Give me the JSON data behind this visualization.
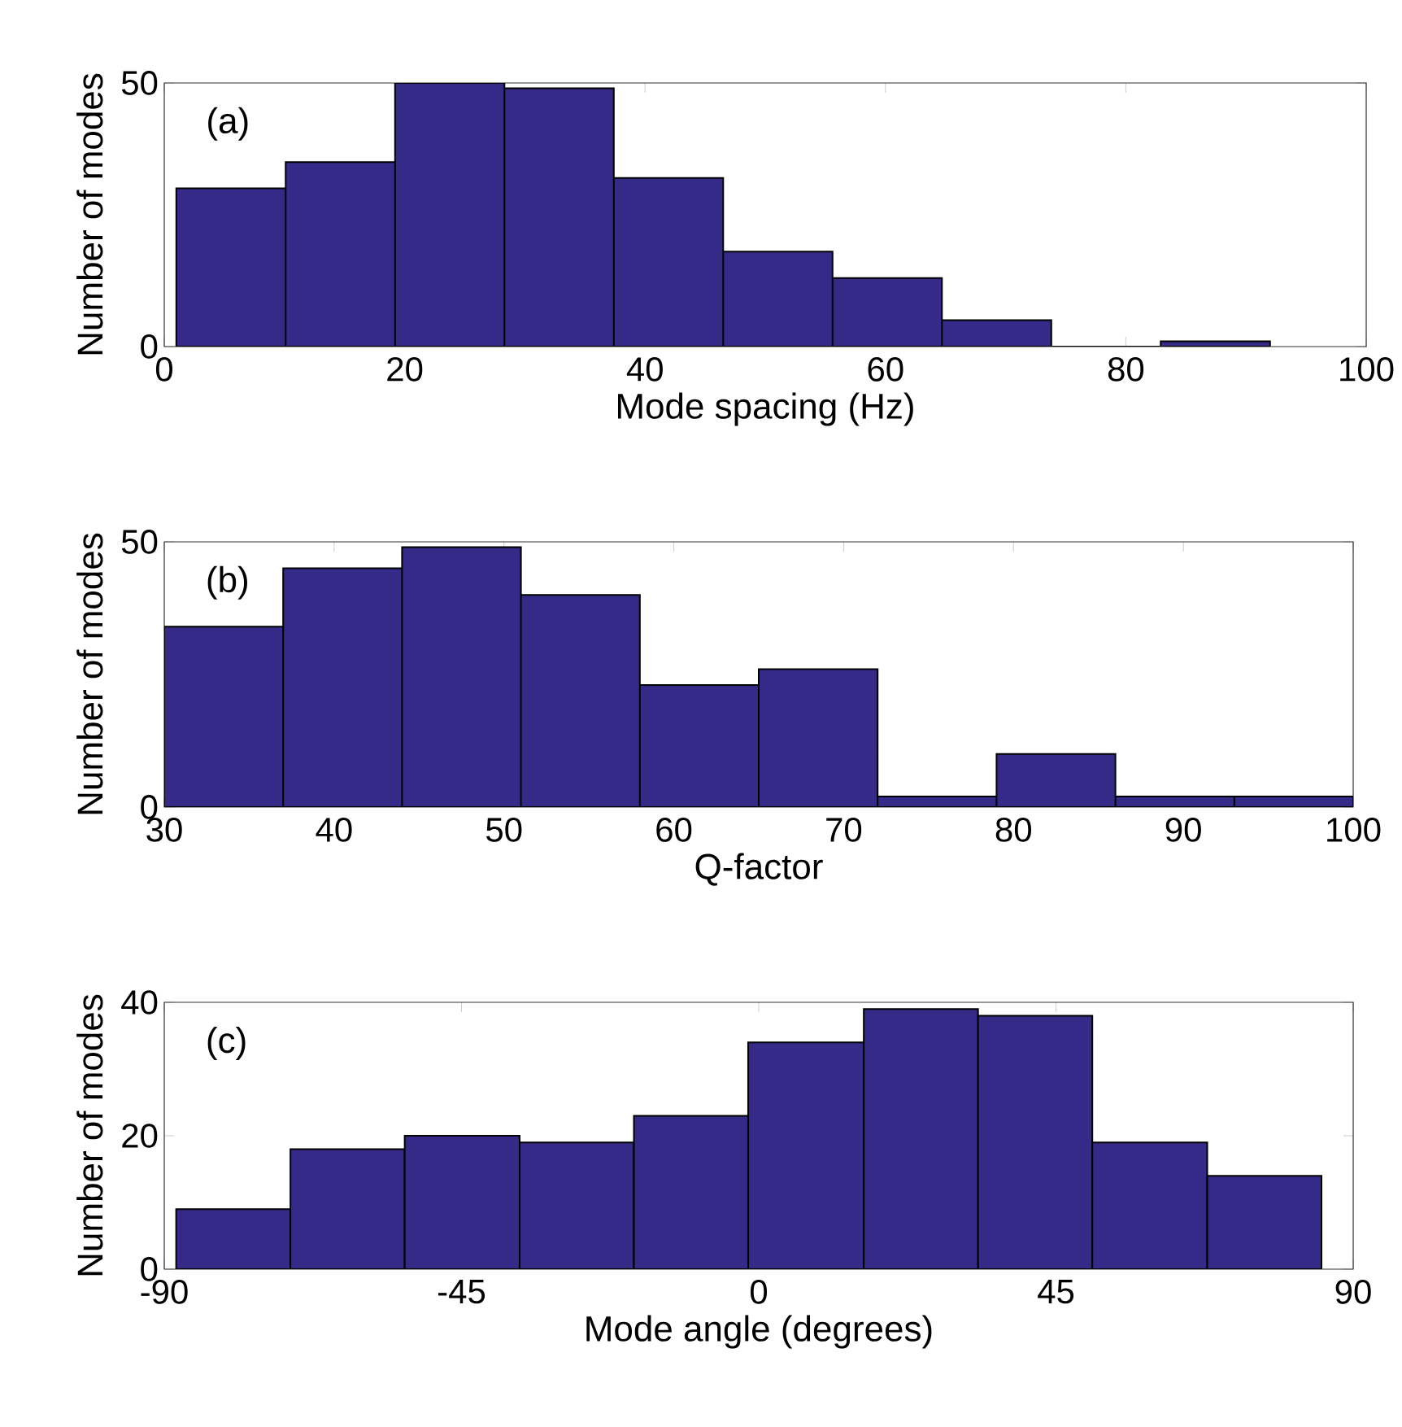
{
  "chart_data": [
    {
      "type": "histogram",
      "bins": [
        1,
        10.1,
        19.2,
        28.3,
        37.4,
        46.5,
        55.6,
        64.7,
        73.8,
        82.9,
        92
      ],
      "values": [
        30,
        35,
        50,
        49,
        32,
        18,
        13,
        5,
        0,
        1
      ],
      "color": "#352a87",
      "xlabel": "Mode spacing (Hz)",
      "ylabel": "Number of modes",
      "xlim": [
        0,
        100
      ],
      "ylim": [
        0,
        50
      ],
      "xticks": [
        0,
        20,
        40,
        60,
        80,
        100
      ],
      "yticks": [
        0,
        50
      ],
      "annotations": [
        "(a)"
      ]
    },
    {
      "type": "histogram",
      "bins": [
        30,
        37,
        44,
        51,
        58,
        65,
        72,
        79,
        86,
        93,
        100
      ],
      "values": [
        34,
        45,
        49,
        40,
        23,
        26,
        2,
        10,
        2,
        2
      ],
      "color": "#352a87",
      "xlabel": "Q-factor",
      "ylabel": "Number of modes",
      "xlim": [
        30,
        100
      ],
      "ylim": [
        0,
        50
      ],
      "xticks": [
        30,
        40,
        50,
        60,
        70,
        80,
        90,
        100
      ],
      "yticks": [
        0,
        50
      ],
      "annotations": [
        "(b)"
      ]
    },
    {
      "type": "histogram",
      "bins": [
        -88.2,
        -70.9,
        -53.6,
        -36.2,
        -18.9,
        -1.6,
        15.9,
        33.2,
        50.5,
        67.9,
        85.2
      ],
      "values": [
        9,
        18,
        20,
        19,
        23,
        34,
        39,
        38,
        19,
        14
      ],
      "color": "#352a87",
      "xlabel": "Mode angle (degrees)",
      "ylabel": "Number of modes",
      "xlim": [
        -90,
        90
      ],
      "ylim": [
        0,
        40
      ],
      "xticks": [
        -90,
        -45,
        0,
        45,
        90
      ],
      "yticks": [
        0,
        20,
        40
      ],
      "annotations": [
        "(c)"
      ]
    }
  ]
}
